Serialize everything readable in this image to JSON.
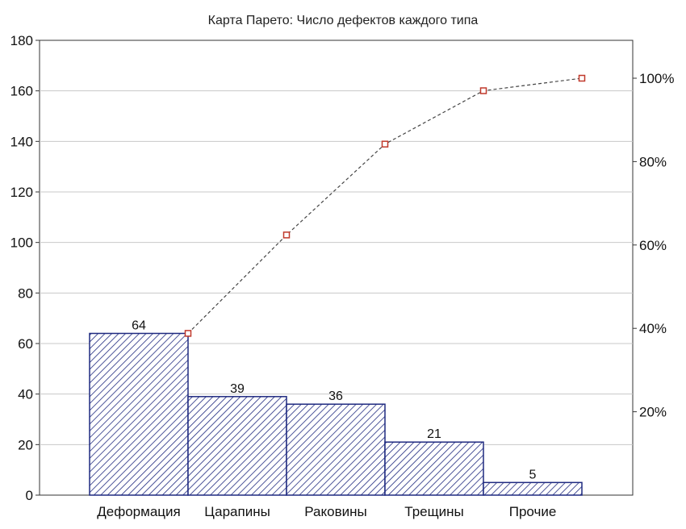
{
  "chart_data": {
    "type": "bar",
    "title": "Карта Парето: Число дефектов каждого типа",
    "xlabel": "",
    "ylabel": "",
    "categories": [
      "Деформация",
      "Царапины",
      "Раковины",
      "Трещины",
      "Прочие"
    ],
    "series": [
      {
        "type": "bar",
        "values": [
          64,
          39,
          36,
          21,
          5
        ],
        "color": "#1f2a80"
      },
      {
        "type": "line",
        "axis": "right",
        "values": [
          38.8,
          62.4,
          84.2,
          97.0,
          100.0
        ],
        "color": "#c0392b"
      }
    ],
    "data_labels": [
      "64",
      "39",
      "36",
      "21",
      "5"
    ],
    "ylim": [
      0,
      180
    ],
    "yticks": [
      "0",
      "20",
      "40",
      "60",
      "80",
      "100",
      "120",
      "140",
      "160",
      "180"
    ],
    "y2lim": [
      0,
      100
    ],
    "y2ticks": [
      "20%",
      "40%",
      "60%",
      "80%",
      "100%"
    ],
    "y2tick_values": [
      20,
      40,
      60,
      80,
      100
    ],
    "grid": true,
    "legend": "none"
  }
}
